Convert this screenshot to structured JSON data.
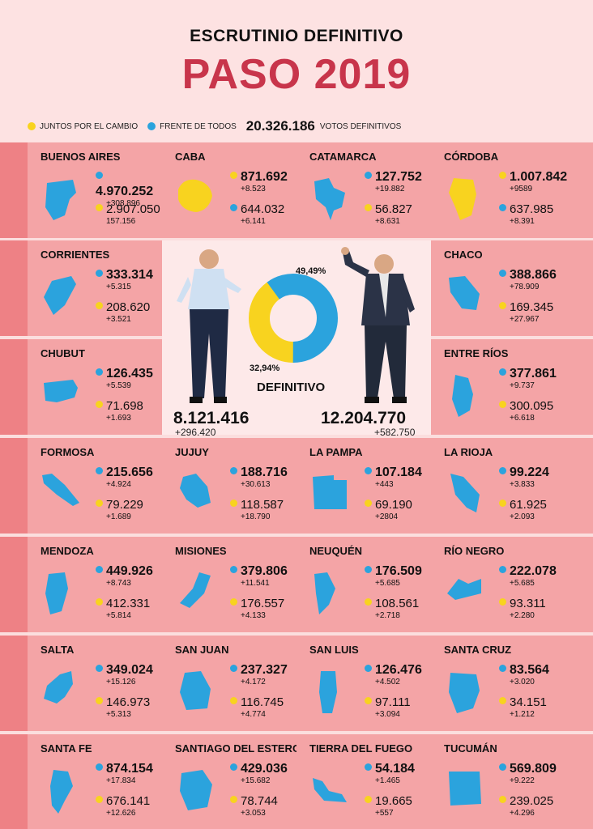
{
  "header": {
    "subtitle": "ESCRUTINIO DEFINITIVO",
    "title": "PASO 2019"
  },
  "legend": {
    "yellow_label": "JUNTOS POR EL CAMBIO",
    "blue_label": "FRENTE DE TODOS",
    "total": "20.326.186",
    "total_label": "VOTOS DEFINITIVOS"
  },
  "colors": {
    "yellow": "#f8d31f",
    "blue": "#2ba3dd",
    "accent": "#c8354b",
    "band": "#ee8185",
    "cell": "#f4a4a6"
  },
  "national": {
    "yellow_pct": "32,94%",
    "blue_pct": "49,49%",
    "label": "DEFINITIVO",
    "macri": {
      "votes": "8.121.416",
      "diff": "+296.420"
    },
    "fernandez": {
      "votes": "12.204.770",
      "diff": "+582.750"
    },
    "shares": {
      "yellow": 32.94,
      "blue": 49.49
    }
  },
  "provinces": [
    {
      "name": "BUENOS AIRES",
      "shape": "buenos-aires-map",
      "top_color": "blue",
      "top": "4.970.252",
      "top_diff": "+308.896",
      "bottom": "2.907.050",
      "bottom_diff": "157.156"
    },
    {
      "name": "CABA",
      "shape": "caba-map",
      "top_color": "yellow",
      "top": "871.692",
      "top_diff": "+8.523",
      "bottom": "644.032",
      "bottom_diff": "+6.141"
    },
    {
      "name": "CATAMARCA",
      "shape": "catamarca-map",
      "top_color": "blue",
      "top": "127.752",
      "top_diff": "+19.882",
      "bottom": "56.827",
      "bottom_diff": "+8.631"
    },
    {
      "name": "CÓRDOBA",
      "shape": "cordoba-map",
      "top_color": "yellow",
      "top": "1.007.842",
      "top_diff": "+9589",
      "bottom": "637.985",
      "bottom_diff": "+8.391"
    },
    {
      "name": "CORRIENTES",
      "shape": "corrientes-map",
      "top_color": "blue",
      "top": "333.314",
      "top_diff": "+5.315",
      "bottom": "208.620",
      "bottom_diff": "+3.521"
    },
    {
      "name": "CHACO",
      "shape": "chaco-map",
      "top_color": "blue",
      "top": "388.866",
      "top_diff": "+78.909",
      "bottom": "169.345",
      "bottom_diff": "+27.967"
    },
    {
      "name": "CHUBUT",
      "shape": "chubut-map",
      "top_color": "blue",
      "top": "126.435",
      "top_diff": "+5.539",
      "bottom": "71.698",
      "bottom_diff": "+1.693"
    },
    {
      "name": "ENTRE RÍOS",
      "shape": "entre-rios-map",
      "top_color": "blue",
      "top": "377.861",
      "top_diff": "+9.737",
      "bottom": "300.095",
      "bottom_diff": "+6.618"
    },
    {
      "name": "FORMOSA",
      "shape": "formosa-map",
      "top_color": "blue",
      "top": "215.656",
      "top_diff": "+4.924",
      "bottom": "79.229",
      "bottom_diff": "+1.689"
    },
    {
      "name": "JUJUY",
      "shape": "jujuy-map",
      "top_color": "blue",
      "top": "188.716",
      "top_diff": "+30.613",
      "bottom": "118.587",
      "bottom_diff": "+18.790"
    },
    {
      "name": "LA PAMPA",
      "shape": "la-pampa-map",
      "top_color": "blue",
      "top": "107.184",
      "top_diff": "+443",
      "bottom": "69.190",
      "bottom_diff": "+2804"
    },
    {
      "name": "LA RIOJA",
      "shape": "la-rioja-map",
      "top_color": "blue",
      "top": "99.224",
      "top_diff": "+3.833",
      "bottom": "61.925",
      "bottom_diff": "+2.093"
    },
    {
      "name": "MENDOZA",
      "shape": "mendoza-map",
      "top_color": "blue",
      "top": "449.926",
      "top_diff": "+8.743",
      "bottom": "412.331",
      "bottom_diff": "+5.814"
    },
    {
      "name": "MISIONES",
      "shape": "misiones-map",
      "top_color": "blue",
      "top": "379.806",
      "top_diff": "+11.541",
      "bottom": "176.557",
      "bottom_diff": "+4.133"
    },
    {
      "name": "NEUQUÉN",
      "shape": "neuquen-map",
      "top_color": "blue",
      "top": "176.509",
      "top_diff": "+5.685",
      "bottom": "108.561",
      "bottom_diff": "+2.718"
    },
    {
      "name": "RÍO NEGRO",
      "shape": "rio-negro-map",
      "top_color": "blue",
      "top": "222.078",
      "top_diff": "+5.685",
      "bottom": "93.311",
      "bottom_diff": "+2.280"
    },
    {
      "name": "SALTA",
      "shape": "salta-map",
      "top_color": "blue",
      "top": "349.024",
      "top_diff": "+15.126",
      "bottom": "146.973",
      "bottom_diff": "+5.313"
    },
    {
      "name": "SAN JUAN",
      "shape": "san-juan-map",
      "top_color": "blue",
      "top": "237.327",
      "top_diff": "+4.172",
      "bottom": "116.745",
      "bottom_diff": "+4.774"
    },
    {
      "name": "SAN LUIS",
      "shape": "san-luis-map",
      "top_color": "blue",
      "top": "126.476",
      "top_diff": "+4.502",
      "bottom": "97.111",
      "bottom_diff": "+3.094"
    },
    {
      "name": "SANTA CRUZ",
      "shape": "santa-cruz-map",
      "top_color": "blue",
      "top": "83.564",
      "top_diff": "+3.020",
      "bottom": "34.151",
      "bottom_diff": "+1.212"
    },
    {
      "name": "SANTA FE",
      "shape": "santa-fe-map",
      "top_color": "blue",
      "top": "874.154",
      "top_diff": "+17.834",
      "bottom": "676.141",
      "bottom_diff": "+12.626"
    },
    {
      "name": "SANTIAGO DEL ESTERO",
      "shape": "santiago-del-estero-map",
      "top_color": "blue",
      "top": "429.036",
      "top_diff": "+15.682",
      "bottom": "78.744",
      "bottom_diff": "+3.053"
    },
    {
      "name": "TIERRA DEL FUEGO",
      "shape": "tierra-del-fuego-map",
      "top_color": "blue",
      "top": "54.184",
      "top_diff": "+1.465",
      "bottom": "19.665",
      "bottom_diff": "+557"
    },
    {
      "name": "TUCUMÁN",
      "shape": "tucuman-map",
      "top_color": "blue",
      "top": "569.809",
      "top_diff": "+9.222",
      "bottom": "239.025",
      "bottom_diff": "+4.296"
    }
  ]
}
